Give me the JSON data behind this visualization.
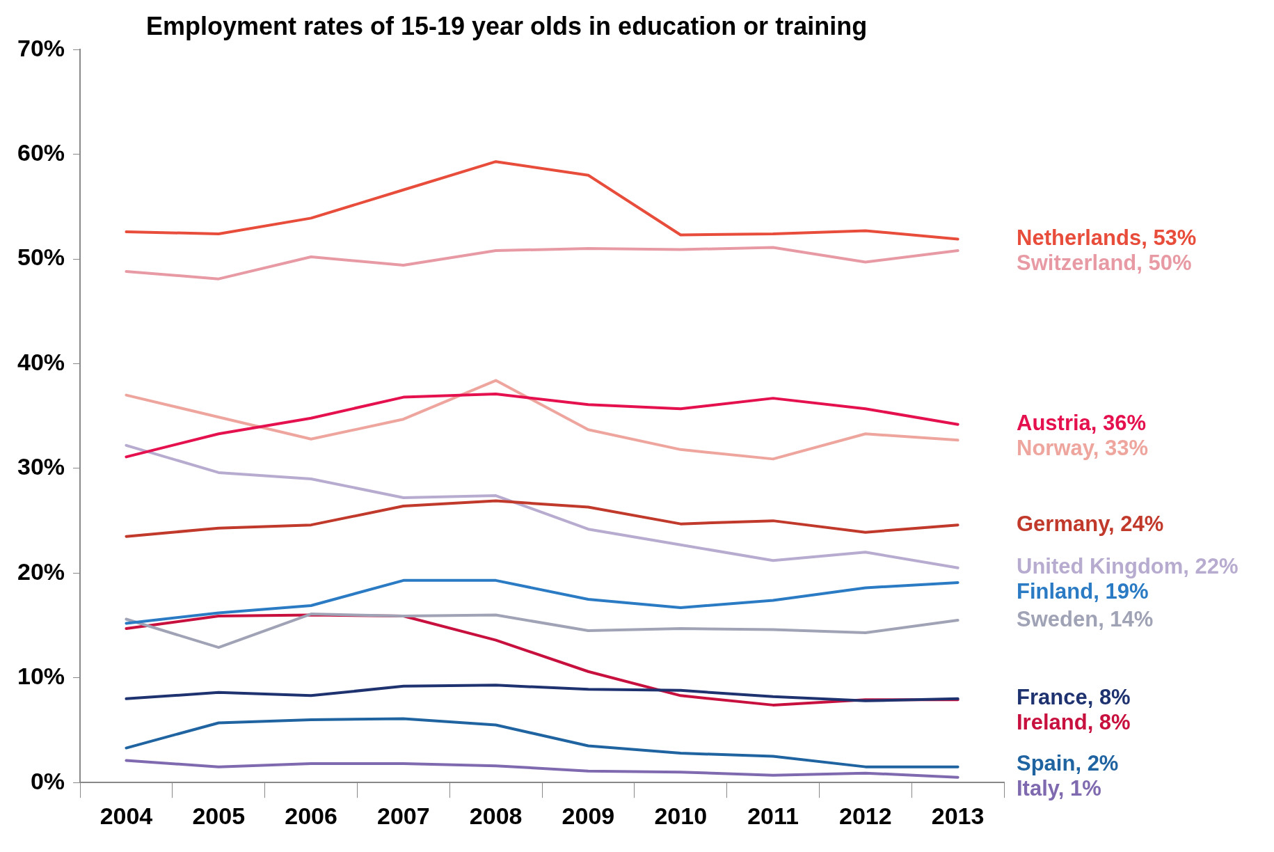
{
  "chart_data": {
    "type": "line",
    "title": "Employment rates of 15-19 year olds in education or training",
    "categories": [
      "2004",
      "2005",
      "2006",
      "2007",
      "2008",
      "2009",
      "2010",
      "2011",
      "2012",
      "2013"
    ],
    "series": [
      {
        "name": "Netherlands, 53%",
        "color": "#e84c3a",
        "values": [
          52.6,
          52.4,
          53.9,
          56.6,
          59.3,
          58.0,
          52.3,
          52.4,
          52.7,
          51.9
        ]
      },
      {
        "name": "Switzerland, 50%",
        "color": "#e89aa4",
        "values": [
          48.8,
          48.1,
          50.2,
          49.4,
          50.8,
          51.0,
          50.9,
          51.1,
          49.7,
          50.8
        ]
      },
      {
        "name": "Austria, 36%",
        "color": "#e5104e",
        "values": [
          31.1,
          33.3,
          34.8,
          36.8,
          37.1,
          36.1,
          35.7,
          36.7,
          35.7,
          34.2
        ]
      },
      {
        "name": "Norway, 33%",
        "color": "#eea59d",
        "values": [
          37.0,
          34.9,
          32.8,
          34.7,
          38.4,
          33.7,
          31.8,
          30.9,
          33.3,
          32.7
        ]
      },
      {
        "name": "Germany, 24%",
        "color": "#c0392b",
        "values": [
          23.5,
          24.3,
          24.6,
          26.4,
          26.9,
          26.3,
          24.7,
          25.0,
          23.9,
          24.6
        ]
      },
      {
        "name": "United Kingdom, 22%",
        "color": "#b7acd0",
        "values": [
          32.2,
          29.6,
          29.0,
          27.2,
          27.4,
          24.2,
          22.7,
          21.2,
          22.0,
          20.5
        ]
      },
      {
        "name": "Finland, 19%",
        "color": "#2a7bc4",
        "values": [
          15.2,
          16.2,
          16.9,
          19.3,
          19.3,
          17.5,
          16.7,
          17.4,
          18.6,
          19.1
        ]
      },
      {
        "name": "Sweden, 14%",
        "color": "#a0a3b5",
        "values": [
          15.6,
          12.9,
          16.1,
          15.9,
          16.0,
          14.5,
          14.7,
          14.6,
          14.3,
          15.5
        ]
      },
      {
        "name": "France, 8%",
        "color": "#1f3270",
        "values": [
          8.0,
          8.6,
          8.3,
          9.2,
          9.3,
          8.9,
          8.8,
          8.2,
          7.8,
          8.0
        ]
      },
      {
        "name": "Ireland, 8%",
        "color": "#c8103e",
        "values": [
          14.7,
          15.9,
          16.0,
          15.9,
          13.6,
          10.6,
          8.3,
          7.4,
          7.9,
          7.9
        ]
      },
      {
        "name": "Spain, 2%",
        "color": "#1f64a0",
        "values": [
          3.3,
          5.7,
          6.0,
          6.1,
          5.5,
          3.5,
          2.8,
          2.5,
          1.5,
          1.5
        ]
      },
      {
        "name": "Italy, 1%",
        "color": "#7f6ab0",
        "values": [
          2.1,
          1.5,
          1.8,
          1.8,
          1.6,
          1.1,
          1.0,
          0.7,
          0.9,
          0.5
        ]
      }
    ],
    "ylim": [
      0,
      70
    ],
    "yticks": [
      {
        "value": 0,
        "label": "0%"
      },
      {
        "value": 10,
        "label": "10%"
      },
      {
        "value": 20,
        "label": "20%"
      },
      {
        "value": 30,
        "label": "30%"
      },
      {
        "value": 40,
        "label": "40%"
      },
      {
        "value": 50,
        "label": "50%"
      },
      {
        "value": 60,
        "label": "60%"
      },
      {
        "value": 70,
        "label": "70%"
      }
    ],
    "grid": false,
    "legend": false
  }
}
